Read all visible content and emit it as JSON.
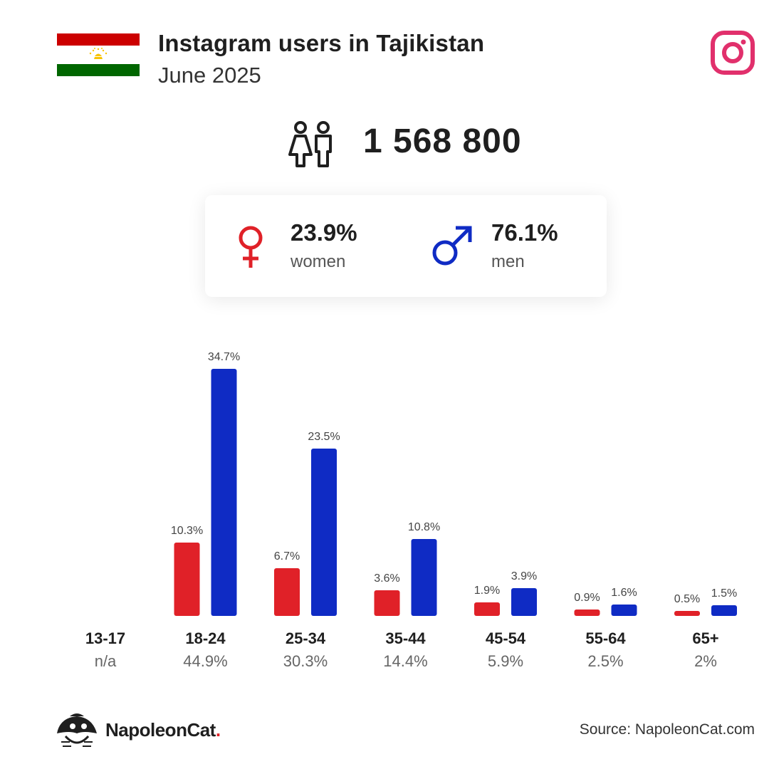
{
  "header": {
    "title": "Instagram users in Tajikistan",
    "subtitle": "June 2025"
  },
  "summary": {
    "total": "1 568 800",
    "women_pct": "23.9%",
    "women_label": "women",
    "men_pct": "76.1%",
    "men_label": "men"
  },
  "colors": {
    "women": "#e02128",
    "men": "#0f2bc4",
    "instagram": "#e1306c"
  },
  "chart_data": {
    "type": "bar",
    "categories": [
      "13-17",
      "18-24",
      "25-34",
      "35-44",
      "45-54",
      "55-64",
      "65+"
    ],
    "category_totals": [
      "n/a",
      "44.9%",
      "30.3%",
      "14.4%",
      "5.9%",
      "2.5%",
      "2%"
    ],
    "series": [
      {
        "key": "women",
        "values": [
          null,
          10.3,
          6.7,
          3.6,
          1.9,
          0.9,
          0.5
        ]
      },
      {
        "key": "men",
        "values": [
          null,
          34.7,
          23.5,
          10.8,
          3.9,
          1.6,
          1.5
        ]
      }
    ],
    "value_labels": {
      "women": [
        "",
        "10.3%",
        "6.7%",
        "3.6%",
        "1.9%",
        "0.9%",
        "0.5%"
      ],
      "men": [
        "",
        "34.7%",
        "23.5%",
        "10.8%",
        "3.9%",
        "1.6%",
        "1.5%"
      ]
    },
    "ylim": [
      0,
      35
    ]
  },
  "footer": {
    "brand": "NapoleonCat",
    "brand_dot": ".",
    "source": "Source: NapoleonCat.com"
  }
}
